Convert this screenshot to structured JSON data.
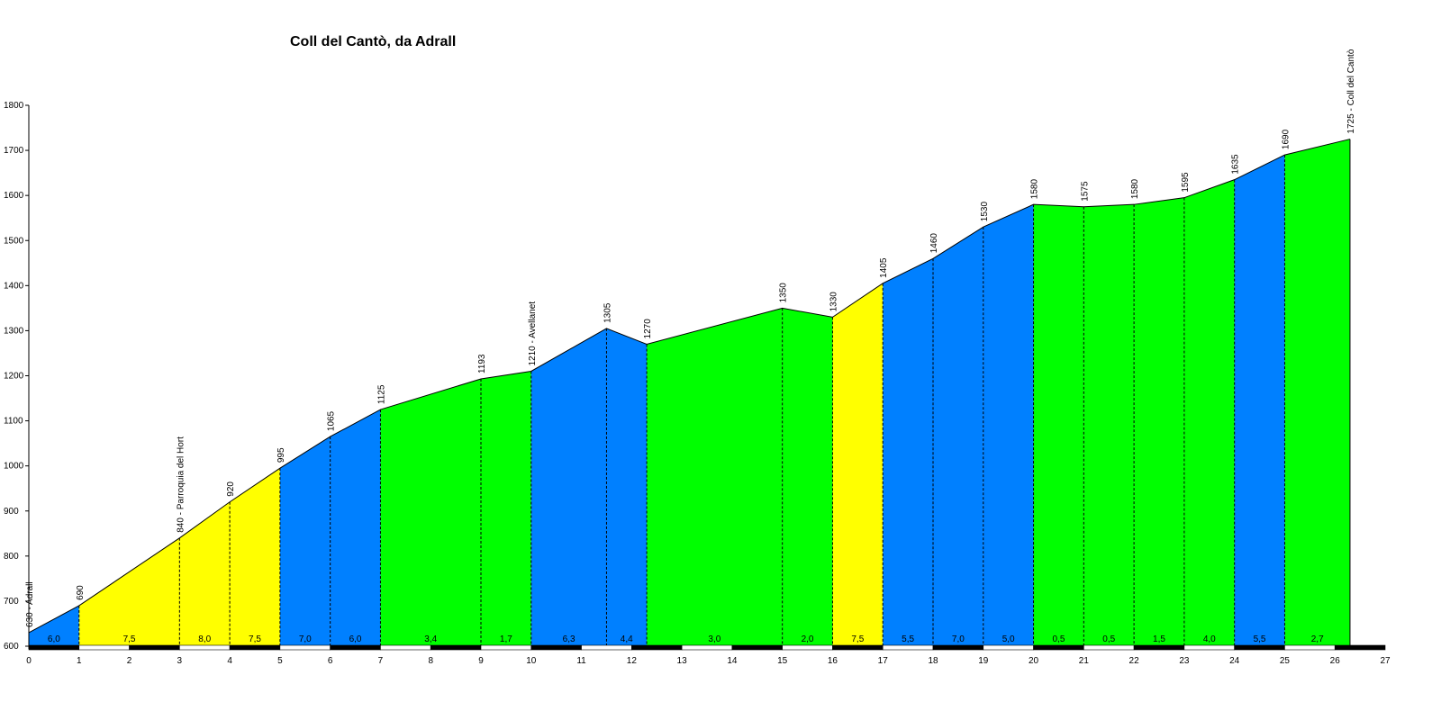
{
  "chart_data": {
    "type": "area",
    "title": "Coll del Cantò, da Adrall",
    "xlabel": "",
    "ylabel": "",
    "xlim": [
      0,
      27
    ],
    "ylim": [
      600,
      1800
    ],
    "x_ticks": [
      "0",
      "1",
      "2",
      "3",
      "4",
      "5",
      "6",
      "7",
      "8",
      "9",
      "10",
      "11",
      "12",
      "13",
      "14",
      "15",
      "16",
      "17",
      "18",
      "19",
      "20",
      "21",
      "22",
      "23",
      "24",
      "25",
      "26",
      "27"
    ],
    "y_ticks": [
      "600",
      "700",
      "800",
      "900",
      "1000",
      "1100",
      "1200",
      "1300",
      "1400",
      "1500",
      "1600",
      "1700",
      "1800"
    ],
    "points": [
      {
        "x": 0,
        "y": 630,
        "label": "630 - Adrall"
      },
      {
        "x": 1,
        "y": 690,
        "label": "690"
      },
      {
        "x": 3,
        "y": 840,
        "label": "840 - Parroquia del Hort"
      },
      {
        "x": 4,
        "y": 920,
        "label": "920"
      },
      {
        "x": 5,
        "y": 995,
        "label": "995"
      },
      {
        "x": 6,
        "y": 1065,
        "label": "1065"
      },
      {
        "x": 7,
        "y": 1125,
        "label": "1125"
      },
      {
        "x": 9,
        "y": 1193,
        "label": "1193"
      },
      {
        "x": 10,
        "y": 1210,
        "label": "1210 - Avellanet"
      },
      {
        "x": 11.5,
        "y": 1305,
        "label": "1305"
      },
      {
        "x": 12.3,
        "y": 1270,
        "label": "1270"
      },
      {
        "x": 15,
        "y": 1350,
        "label": "1350"
      },
      {
        "x": 16,
        "y": 1330,
        "label": "1330"
      },
      {
        "x": 17,
        "y": 1405,
        "label": "1405"
      },
      {
        "x": 18,
        "y": 1460,
        "label": "1460"
      },
      {
        "x": 19,
        "y": 1530,
        "label": "1530"
      },
      {
        "x": 20,
        "y": 1580,
        "label": "1580"
      },
      {
        "x": 21,
        "y": 1575,
        "label": "1575"
      },
      {
        "x": 22,
        "y": 1580,
        "label": "1580"
      },
      {
        "x": 23,
        "y": 1595,
        "label": "1595"
      },
      {
        "x": 24,
        "y": 1635,
        "label": "1635"
      },
      {
        "x": 25,
        "y": 1690,
        "label": "1690"
      },
      {
        "x": 26.3,
        "y": 1725,
        "label": "1725 - Coll del Cantò"
      }
    ],
    "segments": [
      {
        "from": 0,
        "to": 1,
        "gradient": "6,0",
        "color": "#0080ff"
      },
      {
        "from": 1,
        "to": 3,
        "gradient": "7,5",
        "color": "#ffff00"
      },
      {
        "from": 3,
        "to": 4,
        "gradient": "8,0",
        "color": "#ffff00"
      },
      {
        "from": 4,
        "to": 5,
        "gradient": "7,5",
        "color": "#ffff00"
      },
      {
        "from": 5,
        "to": 6,
        "gradient": "7,0",
        "color": "#0080ff"
      },
      {
        "from": 6,
        "to": 7,
        "gradient": "6,0",
        "color": "#0080ff"
      },
      {
        "from": 7,
        "to": 9,
        "gradient": "3,4",
        "color": "#00ff00"
      },
      {
        "from": 9,
        "to": 10,
        "gradient": "1,7",
        "color": "#00ff00"
      },
      {
        "from": 10,
        "to": 11.5,
        "gradient": "6,3",
        "color": "#0080ff"
      },
      {
        "from": 11.5,
        "to": 12.3,
        "gradient": "4,4",
        "color": "#0080ff"
      },
      {
        "from": 12.3,
        "to": 15,
        "gradient": "3,0",
        "color": "#00ff00"
      },
      {
        "from": 15,
        "to": 16,
        "gradient": "2,0",
        "color": "#00ff00"
      },
      {
        "from": 16,
        "to": 17,
        "gradient": "7,5",
        "color": "#ffff00"
      },
      {
        "from": 17,
        "to": 18,
        "gradient": "5,5",
        "color": "#0080ff"
      },
      {
        "from": 18,
        "to": 19,
        "gradient": "7,0",
        "color": "#0080ff"
      },
      {
        "from": 19,
        "to": 20,
        "gradient": "5,0",
        "color": "#0080ff"
      },
      {
        "from": 20,
        "to": 21,
        "gradient": "0,5",
        "color": "#00ff00"
      },
      {
        "from": 21,
        "to": 22,
        "gradient": "0,5",
        "color": "#00ff00"
      },
      {
        "from": 22,
        "to": 23,
        "gradient": "1,5",
        "color": "#00ff00"
      },
      {
        "from": 23,
        "to": 24,
        "gradient": "4,0",
        "color": "#00ff00"
      },
      {
        "from": 24,
        "to": 25,
        "gradient": "5,5",
        "color": "#0080ff"
      },
      {
        "from": 25,
        "to": 26.3,
        "gradient": "2,7",
        "color": "#00ff00"
      }
    ]
  }
}
